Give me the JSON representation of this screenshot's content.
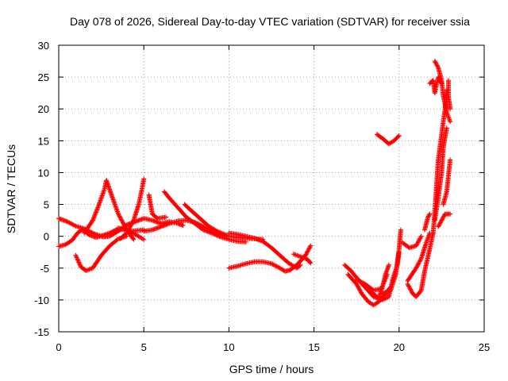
{
  "chart_data": {
    "type": "scatter",
    "title": "Day 078 of 2026, Sidereal Day-to-day VTEC variation (SDTVAR) for receiver ssia",
    "xlabel": "GPS time / hours",
    "ylabel": "SDTVAR / TECUs",
    "xlim": [
      0,
      25
    ],
    "ylim": [
      -15,
      30
    ],
    "xticks": [
      "0",
      "5",
      "10",
      "15",
      "20",
      "25"
    ],
    "yticks": [
      "-15",
      "-10",
      "-5",
      "0",
      "5",
      "10",
      "15",
      "20",
      "25",
      "30"
    ],
    "grid": true,
    "marker": "plus",
    "series": [
      {
        "name": "SDTVAR",
        "color": "#ff0000",
        "tracks": [
          [
            [
              0.0,
              2.8
            ],
            [
              0.5,
              2.3
            ],
            [
              1.0,
              1.6
            ],
            [
              1.5,
              1.2
            ],
            [
              2.0,
              0.5
            ],
            [
              2.6,
              -0.1
            ],
            [
              3.0,
              0.0
            ],
            [
              3.5,
              0.8
            ],
            [
              4.0,
              1.8
            ],
            [
              4.5,
              2.3
            ],
            [
              5.0,
              2.8
            ],
            [
              5.5,
              2.5
            ],
            [
              6.0,
              2.0
            ]
          ],
          [
            [
              0.0,
              -1.6
            ],
            [
              0.4,
              -1.3
            ],
            [
              0.8,
              -0.6
            ],
            [
              1.1,
              0.5
            ],
            [
              1.4,
              1.1
            ],
            [
              1.8,
              0.2
            ],
            [
              2.2,
              -0.2
            ],
            [
              3.0,
              0.5
            ],
            [
              3.5,
              1.2
            ],
            [
              4.2,
              0.8
            ],
            [
              5.0,
              1.0
            ]
          ],
          [
            [
              1.0,
              -3.0
            ],
            [
              1.3,
              -4.8
            ],
            [
              1.6,
              -5.4
            ],
            [
              2.0,
              -5.0
            ],
            [
              2.5,
              -3.0
            ],
            [
              3.0,
              -1.5
            ],
            [
              3.5,
              -0.4
            ],
            [
              4.0,
              0.0
            ]
          ],
          [
            [
              1.5,
              0.5
            ],
            [
              2.0,
              2.5
            ],
            [
              2.3,
              4.5
            ],
            [
              2.5,
              6.0
            ],
            [
              2.7,
              7.5
            ],
            [
              2.8,
              8.8
            ],
            [
              3.1,
              6.5
            ],
            [
              3.5,
              3.5
            ],
            [
              4.0,
              1.0
            ],
            [
              4.4,
              -0.5
            ]
          ],
          [
            [
              3.6,
              -0.4
            ],
            [
              4.0,
              0.5
            ],
            [
              4.4,
              2.5
            ],
            [
              4.7,
              5.0
            ],
            [
              4.9,
              7.5
            ],
            [
              5.0,
              9.0
            ]
          ],
          [
            [
              3.5,
              1.3
            ],
            [
              4.0,
              1.0
            ],
            [
              4.5,
              0.3
            ],
            [
              5.0,
              -0.5
            ]
          ],
          [
            [
              5.3,
              6.5
            ],
            [
              5.5,
              3.5
            ],
            [
              5.8,
              2.8
            ],
            [
              6.3,
              3.0
            ]
          ],
          [
            [
              5.0,
              0.8
            ],
            [
              5.5,
              1.0
            ],
            [
              6.0,
              1.5
            ],
            [
              6.5,
              2.0
            ],
            [
              7.0,
              2.4
            ],
            [
              7.5,
              2.5
            ],
            [
              8.0,
              2.2
            ],
            [
              8.5,
              1.5
            ],
            [
              9.0,
              0.8
            ],
            [
              9.5,
              0.3
            ],
            [
              10.0,
              0.0
            ],
            [
              10.5,
              -0.2
            ],
            [
              11.0,
              -0.3
            ],
            [
              11.5,
              -0.4
            ],
            [
              12.0,
              -0.5
            ]
          ],
          [
            [
              6.2,
              7.0
            ],
            [
              6.5,
              6.0
            ],
            [
              7.0,
              4.5
            ],
            [
              7.5,
              3.0
            ],
            [
              8.0,
              2.0
            ],
            [
              8.5,
              1.0
            ],
            [
              9.0,
              0.5
            ],
            [
              9.5,
              -0.1
            ],
            [
              10.0,
              -0.5
            ],
            [
              10.5,
              -0.8
            ],
            [
              11.0,
              -0.9
            ]
          ],
          [
            [
              7.4,
              5.0
            ],
            [
              7.8,
              4.0
            ],
            [
              8.3,
              2.8
            ],
            [
              8.8,
              1.6
            ],
            [
              9.3,
              0.8
            ],
            [
              9.8,
              0.2
            ]
          ],
          [
            [
              6.0,
              2.0
            ],
            [
              6.5,
              2.3
            ],
            [
              7.0,
              2.0
            ],
            [
              7.3,
              1.7
            ]
          ],
          [
            [
              10.0,
              0.5
            ],
            [
              10.5,
              0.3
            ],
            [
              11.0,
              0.0
            ],
            [
              11.5,
              -0.3
            ],
            [
              12.0,
              -0.8
            ],
            [
              12.5,
              -1.8
            ],
            [
              13.0,
              -3.0
            ],
            [
              13.5,
              -4.2
            ],
            [
              14.0,
              -5.0
            ],
            [
              14.2,
              -4.5
            ]
          ],
          [
            [
              10.0,
              -5.0
            ],
            [
              10.5,
              -4.7
            ],
            [
              11.0,
              -4.3
            ],
            [
              11.5,
              -4.0
            ],
            [
              12.0,
              -4.0
            ],
            [
              12.5,
              -4.3
            ],
            [
              13.0,
              -5.0
            ],
            [
              13.3,
              -5.5
            ],
            [
              13.6,
              -5.3
            ],
            [
              14.0,
              -4.5
            ],
            [
              14.5,
              -3.0
            ],
            [
              14.8,
              -1.5
            ]
          ],
          [
            [
              13.8,
              -2.8
            ],
            [
              14.2,
              -3.2
            ],
            [
              14.6,
              -3.6
            ],
            [
              14.8,
              -4.2
            ]
          ],
          [
            [
              16.8,
              -4.5
            ],
            [
              17.2,
              -5.5
            ],
            [
              17.5,
              -6.5
            ],
            [
              18.0,
              -8.0
            ],
            [
              18.5,
              -9.5
            ],
            [
              19.0,
              -10.0
            ],
            [
              19.4,
              -9.5
            ],
            [
              19.6,
              -7.0
            ],
            [
              19.9,
              -4.5
            ],
            [
              20.0,
              -2.5
            ]
          ],
          [
            [
              17.0,
              -6.0
            ],
            [
              17.5,
              -7.5
            ],
            [
              17.8,
              -9.0
            ],
            [
              18.2,
              -10.3
            ],
            [
              18.5,
              -10.8
            ],
            [
              18.8,
              -10.3
            ],
            [
              19.2,
              -9.0
            ],
            [
              19.5,
              -8.0
            ]
          ],
          [
            [
              17.5,
              -6.8
            ],
            [
              18.0,
              -7.5
            ],
            [
              18.5,
              -8.5
            ],
            [
              19.0,
              -8.2
            ],
            [
              19.2,
              -6.0
            ],
            [
              19.4,
              -4.5
            ]
          ],
          [
            [
              18.0,
              -8.0
            ],
            [
              18.5,
              -9.0
            ],
            [
              18.8,
              -9.8
            ],
            [
              19.0,
              -8.0
            ],
            [
              19.3,
              -6.0
            ]
          ],
          [
            [
              19.0,
              -9.0
            ],
            [
              19.5,
              -8.5
            ],
            [
              19.8,
              -6.0
            ],
            [
              20.0,
              -2.0
            ],
            [
              20.1,
              1.0
            ]
          ],
          [
            [
              18.7,
              16.0
            ],
            [
              19.1,
              15.2
            ],
            [
              19.4,
              14.5
            ],
            [
              19.7,
              15.0
            ],
            [
              20.0,
              15.8
            ]
          ],
          [
            [
              20.2,
              -1.0
            ],
            [
              20.6,
              -1.8
            ],
            [
              21.0,
              -1.5
            ],
            [
              21.3,
              0.0
            ]
          ],
          [
            [
              20.5,
              -7.0
            ],
            [
              21.0,
              -5.0
            ],
            [
              21.3,
              -3.5
            ],
            [
              21.6,
              -1.0
            ],
            [
              21.8,
              0.5
            ]
          ],
          [
            [
              20.5,
              -7.5
            ],
            [
              20.8,
              -9.0
            ],
            [
              21.0,
              -9.5
            ],
            [
              21.3,
              -8.5
            ],
            [
              21.5,
              -5.5
            ],
            [
              21.8,
              -2.0
            ],
            [
              22.0,
              0.5
            ]
          ],
          [
            [
              21.5,
              1.0
            ],
            [
              21.7,
              3.0
            ],
            [
              21.8,
              3.5
            ]
          ],
          [
            [
              22.0,
              0.5
            ],
            [
              22.1,
              4.0
            ],
            [
              22.2,
              8.0
            ],
            [
              22.3,
              12.0
            ],
            [
              22.5,
              16.0
            ],
            [
              22.7,
              20.0
            ],
            [
              22.8,
              23.0
            ]
          ],
          [
            [
              22.1,
              2.5
            ],
            [
              22.3,
              6.0
            ],
            [
              22.5,
              10.0
            ],
            [
              22.6,
              14.0
            ],
            [
              22.8,
              17.0
            ]
          ],
          [
            [
              21.8,
              24.0
            ],
            [
              22.0,
              24.5
            ],
            [
              22.1,
              22.5
            ],
            [
              22.3,
              25.0
            ],
            [
              22.5,
              24.0
            ]
          ],
          [
            [
              22.1,
              27.5
            ],
            [
              22.3,
              26.5
            ],
            [
              22.5,
              24.5
            ],
            [
              22.6,
              22.0
            ],
            [
              22.8,
              19.5
            ],
            [
              23.0,
              18.0
            ]
          ],
          [
            [
              22.9,
              24.5
            ],
            [
              22.9,
              22.0
            ],
            [
              23.0,
              20.0
            ]
          ],
          [
            [
              22.6,
              5.0
            ],
            [
              22.8,
              7.0
            ],
            [
              22.9,
              9.5
            ],
            [
              23.0,
              12.0
            ]
          ],
          [
            [
              22.3,
              1.5
            ],
            [
              22.5,
              2.5
            ],
            [
              22.7,
              3.5
            ],
            [
              23.0,
              3.5
            ]
          ]
        ]
      }
    ]
  }
}
